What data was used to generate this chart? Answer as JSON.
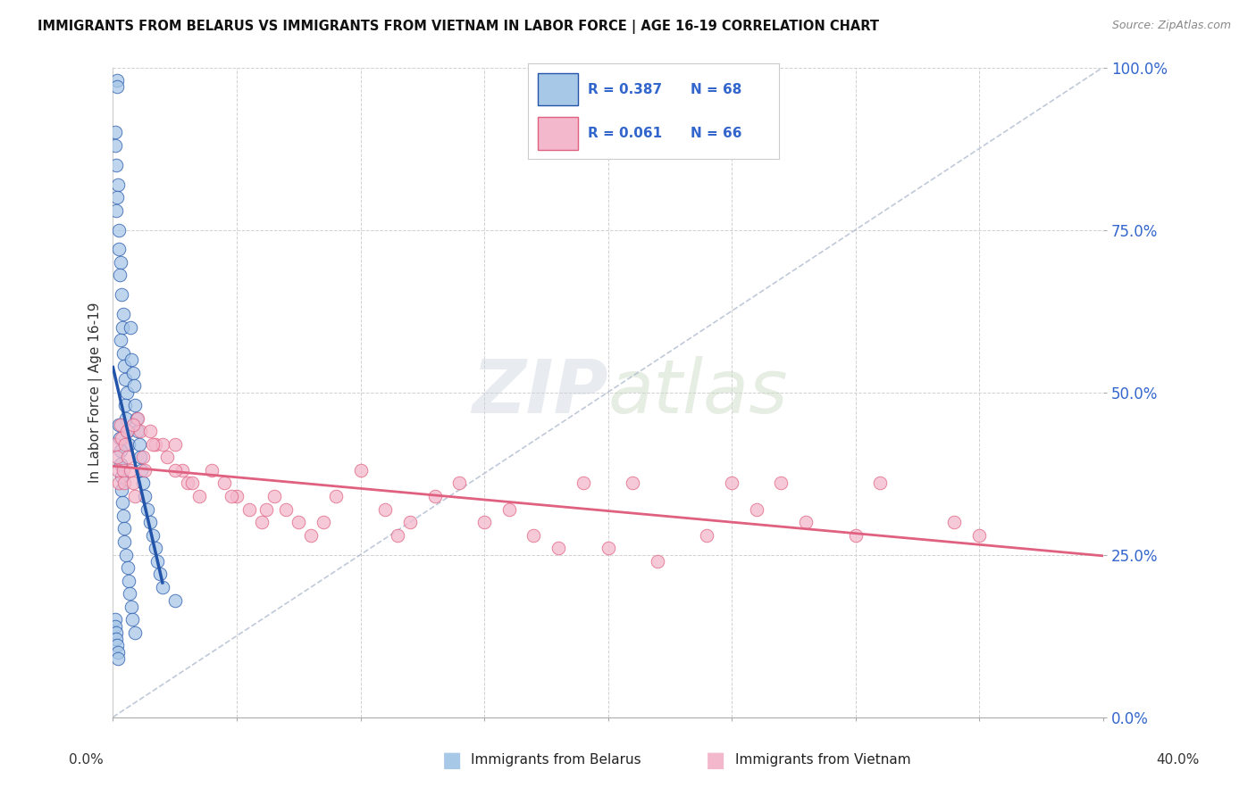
{
  "title": "IMMIGRANTS FROM BELARUS VS IMMIGRANTS FROM VIETNAM IN LABOR FORCE | AGE 16-19 CORRELATION CHART",
  "source": "Source: ZipAtlas.com",
  "ylabel": "In Labor Force | Age 16-19",
  "color_belarus": "#a8c8e8",
  "color_vietnam": "#f4b8cc",
  "color_line_belarus": "#2255aa",
  "color_line_vietnam": "#e06080",
  "color_legend_text": "#3366cc",
  "watermark_zip": "ZIP",
  "watermark_atlas": "atlas",
  "legend_r_belarus": "0.387",
  "legend_n_belarus": "68",
  "legend_r_vietnam": "0.061",
  "legend_n_vietnam": "66",
  "xlim": [
    0,
    40
  ],
  "ylim": [
    0,
    100
  ],
  "ytick_vals": [
    0,
    25,
    50,
    75,
    100
  ],
  "ytick_labels": [
    "0.0%",
    "25.0%",
    "50.0%",
    "75.0%",
    "100.0%"
  ],
  "belarus_x": [
    0.15,
    0.17,
    0.1,
    0.1,
    0.12,
    0.2,
    0.18,
    0.14,
    0.22,
    0.25,
    0.3,
    0.28,
    0.35,
    0.4,
    0.38,
    0.32,
    0.42,
    0.45,
    0.5,
    0.55,
    0.48,
    0.52,
    0.6,
    0.65,
    0.7,
    0.75,
    0.8,
    0.85,
    0.9,
    0.95,
    1.0,
    1.05,
    1.1,
    1.15,
    1.2,
    1.3,
    1.4,
    1.5,
    1.6,
    1.7,
    1.8,
    1.9,
    2.0,
    0.08,
    0.09,
    0.11,
    0.13,
    0.16,
    0.19,
    0.21,
    0.23,
    0.26,
    0.29,
    0.31,
    0.33,
    0.36,
    0.39,
    0.41,
    0.44,
    0.47,
    0.53,
    0.58,
    0.63,
    0.68,
    0.73,
    0.78,
    0.88,
    2.5
  ],
  "belarus_y": [
    98,
    97,
    90,
    88,
    85,
    82,
    80,
    78,
    75,
    72,
    70,
    68,
    65,
    62,
    60,
    58,
    56,
    54,
    52,
    50,
    48,
    46,
    44,
    42,
    60,
    55,
    53,
    51,
    48,
    46,
    44,
    42,
    40,
    38,
    36,
    34,
    32,
    30,
    28,
    26,
    24,
    22,
    20,
    15,
    14,
    13,
    12,
    11,
    10,
    9,
    45,
    43,
    41,
    39,
    37,
    35,
    33,
    31,
    29,
    27,
    25,
    23,
    21,
    19,
    17,
    15,
    13,
    18
  ],
  "vietnam_x": [
    0.1,
    0.15,
    0.2,
    0.25,
    0.3,
    0.35,
    0.4,
    0.45,
    0.5,
    0.55,
    0.6,
    0.7,
    0.8,
    0.9,
    1.0,
    1.1,
    1.2,
    1.3,
    1.5,
    1.7,
    2.0,
    2.2,
    2.5,
    2.8,
    3.0,
    3.5,
    4.0,
    4.5,
    5.0,
    5.5,
    6.0,
    6.5,
    7.0,
    7.5,
    8.0,
    9.0,
    10.0,
    11.0,
    12.0,
    13.0,
    14.0,
    15.0,
    16.0,
    17.0,
    18.0,
    19.0,
    20.0,
    21.0,
    22.0,
    24.0,
    25.0,
    26.0,
    27.0,
    28.0,
    30.0,
    31.0,
    34.0,
    35.0,
    0.8,
    1.6,
    2.5,
    3.2,
    4.8,
    6.2,
    8.5,
    11.5
  ],
  "vietnam_y": [
    42,
    40,
    38,
    36,
    45,
    43,
    38,
    36,
    42,
    44,
    40,
    38,
    36,
    34,
    46,
    44,
    40,
    38,
    44,
    42,
    42,
    40,
    42,
    38,
    36,
    34,
    38,
    36,
    34,
    32,
    30,
    34,
    32,
    30,
    28,
    34,
    38,
    32,
    30,
    34,
    36,
    30,
    32,
    28,
    26,
    36,
    26,
    36,
    24,
    28,
    36,
    32,
    36,
    30,
    28,
    36,
    30,
    28,
    45,
    42,
    38,
    36,
    34,
    32,
    30,
    28
  ],
  "diag_color": "#b0bcd0"
}
